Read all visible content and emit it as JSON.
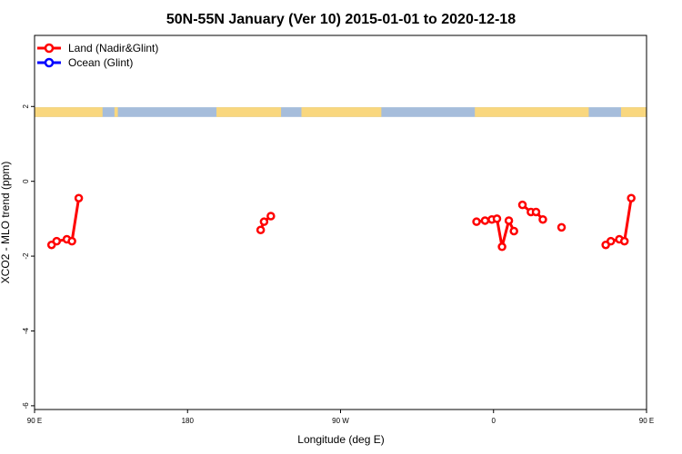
{
  "chart_data": {
    "type": "line",
    "title": "50N-55N January (Ver 10)   2015-01-01 to 2020-12-18",
    "xlabel": "Longitude (deg E)",
    "ylabel": "XCO2 - MLO trend (ppm)",
    "xlim": [
      90,
      450
    ],
    "ylim": [
      -6.1,
      3.9
    ],
    "x_ticks": [
      {
        "value": 90,
        "label": "90 E"
      },
      {
        "value": 180,
        "label": "180"
      },
      {
        "value": 270,
        "label": "90 W"
      },
      {
        "value": 360,
        "label": "0"
      },
      {
        "value": 450,
        "label": "90 E"
      },
      {
        "value": 540,
        "label": "180"
      }
    ],
    "y_ticks": [
      {
        "value": 2,
        "label": "2"
      },
      {
        "value": 0,
        "label": "0"
      },
      {
        "value": -2,
        "label": "-2"
      },
      {
        "value": -4,
        "label": "-4"
      },
      {
        "value": -6,
        "label": "-6"
      }
    ],
    "legend_position": "top-left",
    "grid": false,
    "land_ocean_strip": {
      "y_range": [
        1.72,
        1.98
      ],
      "land_color": "#f9d77e",
      "ocean_color": "#a6bddb",
      "land_segments": [
        [
          90,
          130
        ],
        [
          137,
          139
        ],
        [
          197,
          235
        ],
        [
          247,
          294
        ],
        [
          349,
          416
        ],
        [
          435,
          475
        ],
        [
          477,
          480
        ],
        [
          512,
          530
        ]
      ]
    },
    "series": [
      {
        "name": "Land (Nadir&Glint)",
        "color": "#ff0000",
        "segments": [
          [
            [
              100,
              -1.7
            ],
            [
              103,
              -1.6
            ],
            [
              109,
              -1.55
            ],
            [
              112,
              -1.6
            ],
            [
              116,
              -0.45
            ]
          ],
          [
            [
              223,
              -1.3
            ],
            [
              225,
              -1.08
            ],
            [
              229,
              -0.93
            ]
          ],
          [
            [
              350,
              -1.08
            ],
            [
              355,
              -1.05
            ],
            [
              359,
              -1.02
            ],
            [
              362,
              -1.0
            ],
            [
              365,
              -1.75
            ],
            [
              369,
              -1.05
            ],
            [
              372,
              -1.33
            ]
          ],
          [
            [
              377,
              -0.63
            ],
            [
              382,
              -0.82
            ],
            [
              385,
              -0.82
            ],
            [
              389,
              -1.02
            ]
          ],
          [
            [
              400,
              -1.23
            ]
          ],
          [
            [
              426,
              -1.7
            ],
            [
              429,
              -1.6
            ],
            [
              434,
              -1.55
            ],
            [
              437,
              -1.6
            ],
            [
              441,
              -0.45
            ]
          ]
        ]
      },
      {
        "name": "Ocean (Glint)",
        "color": "#0000ff",
        "segments": []
      }
    ]
  }
}
